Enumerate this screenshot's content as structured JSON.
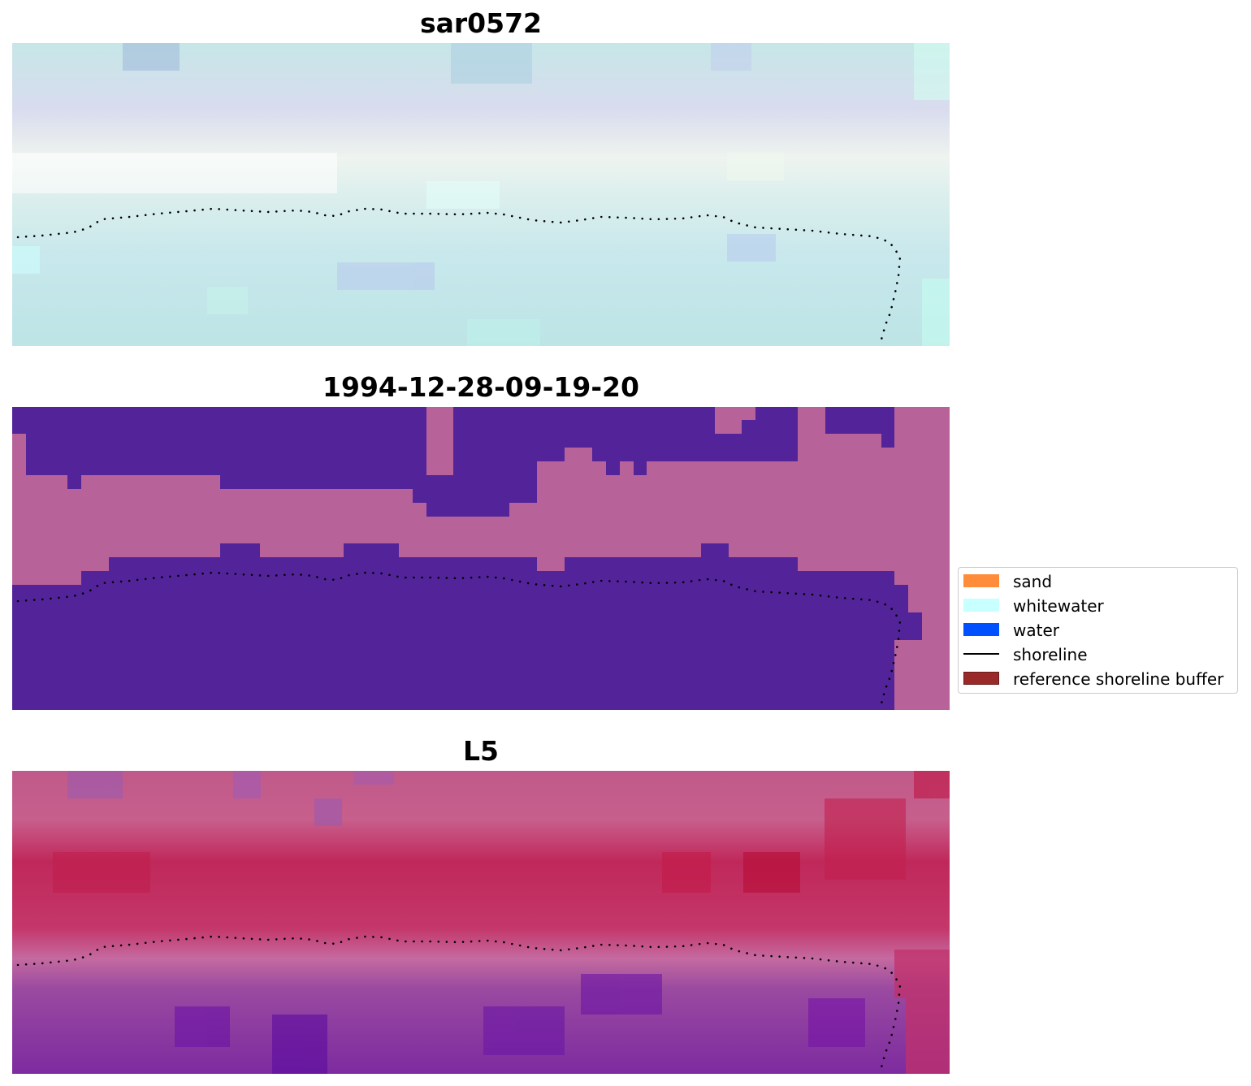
{
  "panels": [
    {
      "title": "sar0572",
      "style": "rgb-composite"
    },
    {
      "title": "1994-12-28-09-19-20",
      "style": "classified"
    },
    {
      "title": "L5",
      "style": "false-color"
    }
  ],
  "colors": {
    "sand": "#ff8c3a",
    "whitewater": "#c8ffff",
    "water": "#0050ff",
    "shoreline": "#000000",
    "buffer": "#9a2a2a",
    "class_water_shade": "#53239a",
    "class_land_shade": "#b7639a"
  },
  "legend": {
    "items": [
      {
        "label": "sand",
        "kind": "patch",
        "color": "#ff8c3a"
      },
      {
        "label": "whitewater",
        "kind": "patch",
        "color": "#c8ffff"
      },
      {
        "label": "water",
        "kind": "patch",
        "color": "#0050ff"
      },
      {
        "label": "shoreline",
        "kind": "line",
        "color": "#000000"
      },
      {
        "label": "reference shoreline buffer",
        "kind": "patch",
        "color": "#9a2a2a"
      }
    ]
  }
}
